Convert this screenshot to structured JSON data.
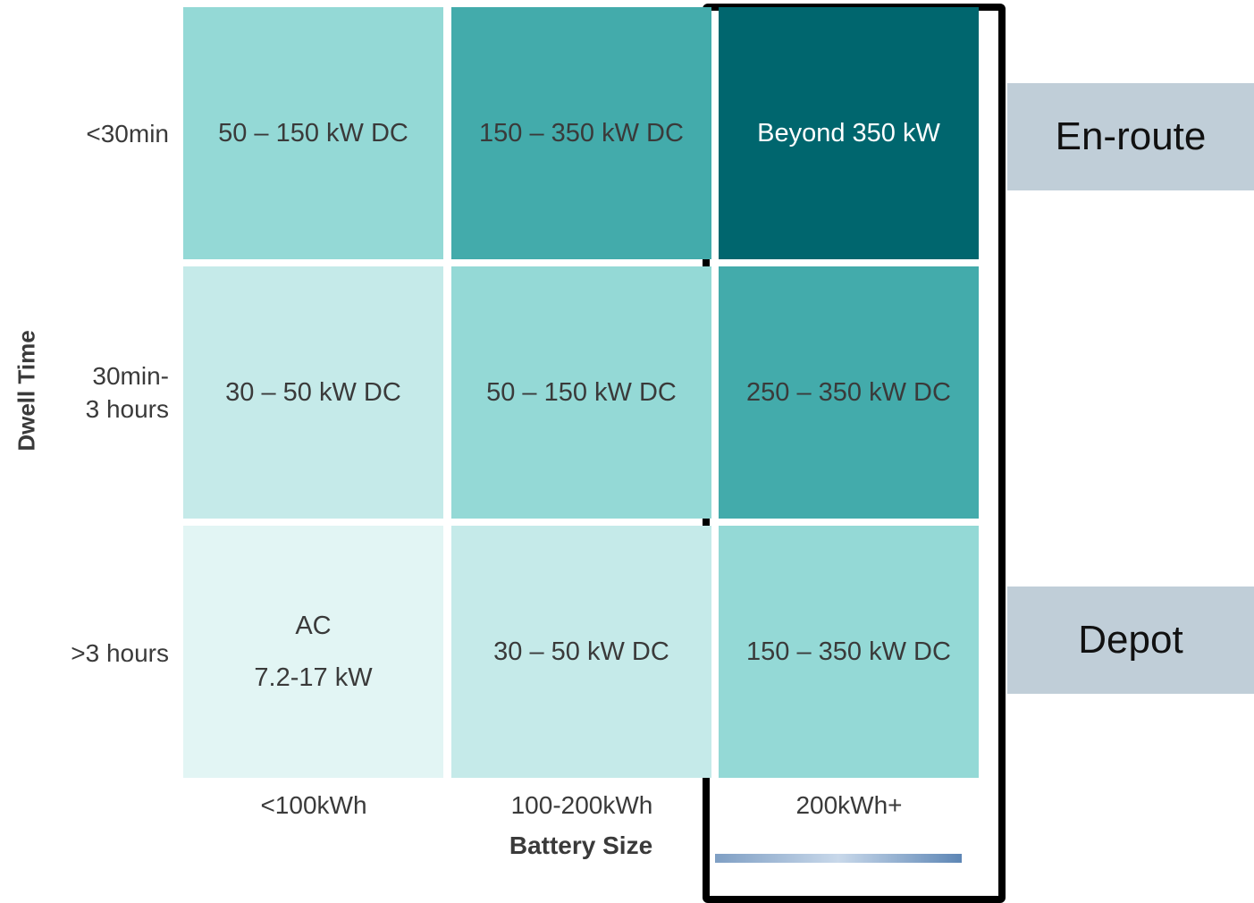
{
  "y_axis_title": "Dwell Time",
  "x_axis_title": "Battery Size",
  "row_labels": [
    [
      "<30min"
    ],
    [
      "30min-",
      "3 hours"
    ],
    [
      ">3 hours"
    ]
  ],
  "column_labels": [
    "<100kWh",
    "100-200kWh",
    "200kWh+"
  ],
  "cells": [
    [
      [
        "50 – 150 kW DC"
      ],
      [
        "150 – 350 kW DC"
      ],
      [
        "Beyond 350 kW"
      ]
    ],
    [
      [
        "30 – 50 kW DC"
      ],
      [
        "50 – 150 kW DC"
      ],
      [
        "250 – 350 kW DC"
      ]
    ],
    [
      [
        "AC",
        "7.2-17 kW"
      ],
      [
        "30 – 50 kW DC"
      ],
      [
        "150 – 350 kW DC"
      ]
    ]
  ],
  "side_labels": [
    "En-route",
    "Depot"
  ]
}
